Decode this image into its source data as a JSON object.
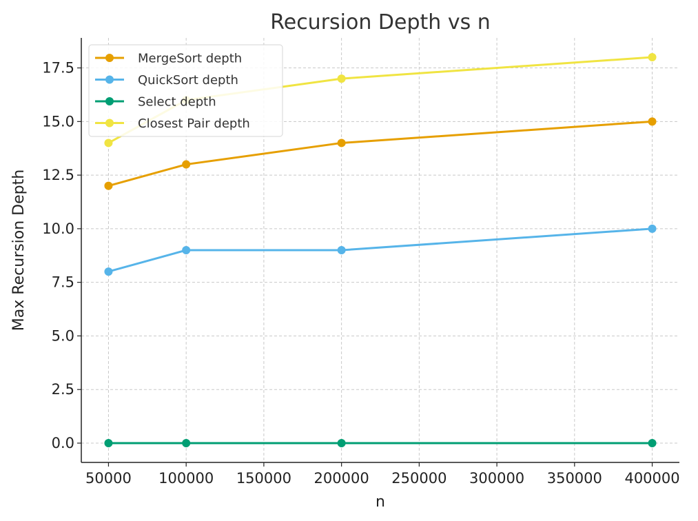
{
  "chart_data": {
    "type": "line",
    "title": "Recursion Depth vs n",
    "xlabel": "n",
    "ylabel": "Max Recursion Depth",
    "x": [
      50000,
      100000,
      200000,
      400000
    ],
    "xlim": [
      32500,
      417500
    ],
    "ylim": [
      -0.9,
      18.9
    ],
    "xticks": [
      50000,
      100000,
      150000,
      200000,
      250000,
      300000,
      350000,
      400000
    ],
    "xtick_labels": [
      "50000",
      "100000",
      "150000",
      "200000",
      "250000",
      "300000",
      "350000",
      "400000"
    ],
    "yticks": [
      0.0,
      2.5,
      5.0,
      7.5,
      10.0,
      12.5,
      15.0,
      17.5
    ],
    "ytick_labels": [
      "0.0",
      "2.5",
      "5.0",
      "7.5",
      "10.0",
      "12.5",
      "15.0",
      "17.5"
    ],
    "grid": true,
    "legend_position": "top-left",
    "series": [
      {
        "name": "MergeSort depth",
        "color": "#E69F00",
        "values": [
          12,
          13,
          14,
          15
        ]
      },
      {
        "name": "QuickSort depth",
        "color": "#56B4E9",
        "values": [
          8,
          9,
          9,
          10
        ]
      },
      {
        "name": "Select depth",
        "color": "#009E73",
        "values": [
          0,
          0,
          0,
          0
        ]
      },
      {
        "name": "Closest Pair depth",
        "color": "#F0E442",
        "values": [
          14,
          16,
          17,
          18
        ]
      }
    ]
  }
}
